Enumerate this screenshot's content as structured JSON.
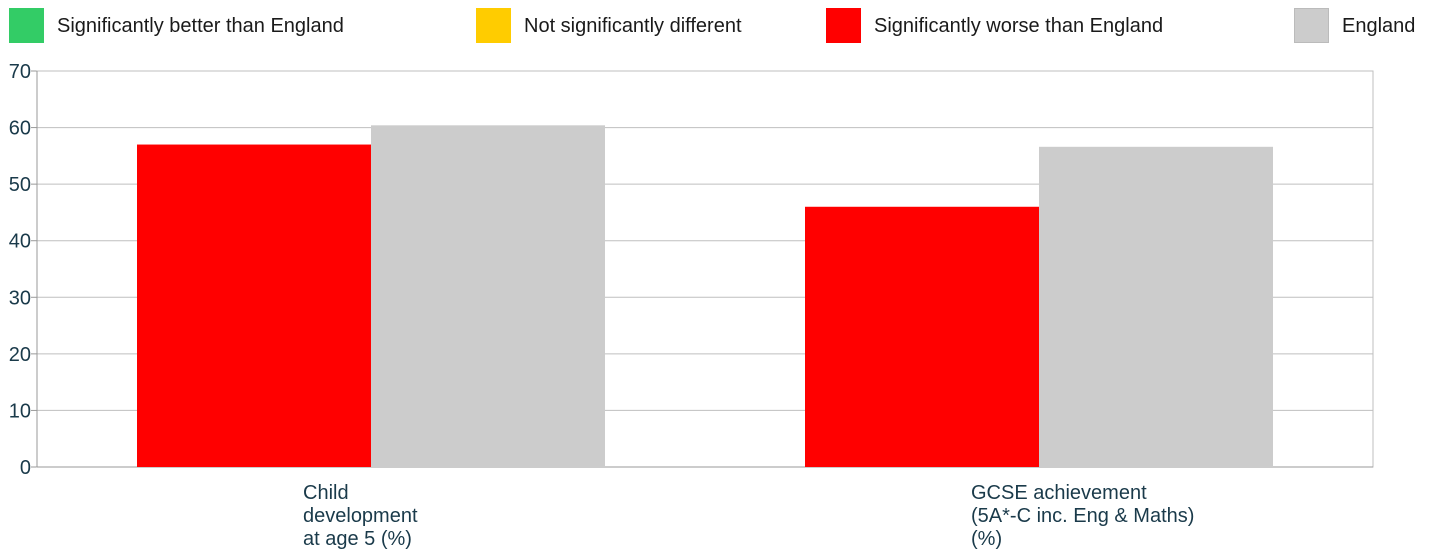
{
  "legend": [
    {
      "label": "Significantly better than England",
      "color": "#33cc66"
    },
    {
      "label": "Not significantly different",
      "color": "#ffcc00"
    },
    {
      "label": "Significantly worse than England",
      "color": "#ff0000"
    },
    {
      "label": "England",
      "color": "#cccccc"
    }
  ],
  "chart_data": {
    "type": "bar",
    "categories": [
      [
        "Child",
        "development",
        "at age 5 (%)"
      ],
      [
        "GCSE achievement",
        "(5A*-C inc. Eng & Maths)",
        "(%)"
      ]
    ],
    "series": [
      {
        "values": [
          57.0,
          46.0
        ],
        "color": "#ff0000"
      },
      {
        "name": "England",
        "values": [
          60.4,
          56.6
        ],
        "color": "#cccccc"
      }
    ],
    "ylim": [
      0,
      70
    ],
    "yticks": [
      "0",
      "10",
      "20",
      "30",
      "40",
      "50",
      "60",
      "70"
    ],
    "grid": true
  }
}
